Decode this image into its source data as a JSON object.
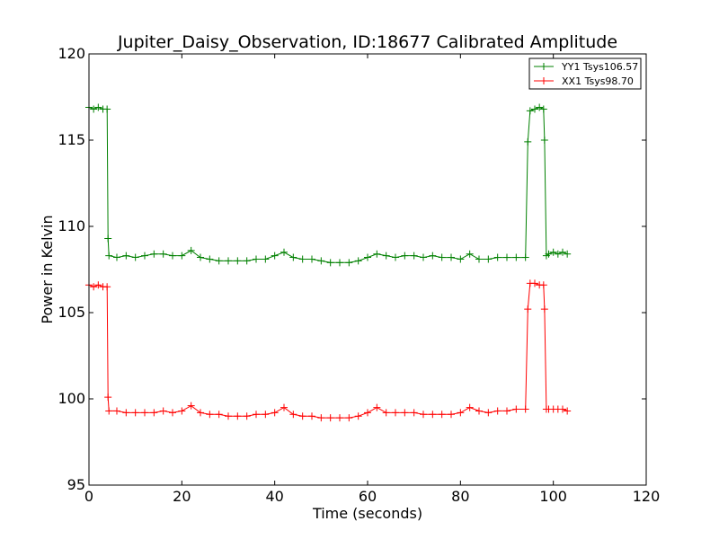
{
  "chart_data": {
    "type": "line",
    "title": "Jupiter_Daisy_Observation, ID:18677 Calibrated Amplitude",
    "xlabel": "Time (seconds)",
    "ylabel": "Power in Kelvin",
    "xlim": [
      0,
      120
    ],
    "ylim": [
      95,
      120
    ],
    "xticks": [
      0,
      20,
      40,
      60,
      80,
      100,
      120
    ],
    "yticks": [
      95,
      100,
      105,
      110,
      115,
      120
    ],
    "grid": false,
    "legend_position": "top-right",
    "marker": "+",
    "series": [
      {
        "name": "YY1 Tsys106.57",
        "color": "#008000",
        "points": [
          [
            0,
            116.9
          ],
          [
            1,
            116.8
          ],
          [
            2,
            116.9
          ],
          [
            3,
            116.8
          ],
          [
            3.9,
            116.8
          ],
          [
            4.1,
            109.3
          ],
          [
            4.3,
            108.3
          ],
          [
            6,
            108.2
          ],
          [
            8,
            108.3
          ],
          [
            10,
            108.2
          ],
          [
            12,
            108.3
          ],
          [
            14,
            108.4
          ],
          [
            16,
            108.4
          ],
          [
            18,
            108.3
          ],
          [
            20,
            108.3
          ],
          [
            22,
            108.6
          ],
          [
            24,
            108.2
          ],
          [
            26,
            108.1
          ],
          [
            28,
            108.0
          ],
          [
            30,
            108.0
          ],
          [
            32,
            108.0
          ],
          [
            34,
            108.0
          ],
          [
            36,
            108.1
          ],
          [
            38,
            108.1
          ],
          [
            40,
            108.3
          ],
          [
            42,
            108.5
          ],
          [
            44,
            108.2
          ],
          [
            46,
            108.1
          ],
          [
            48,
            108.1
          ],
          [
            50,
            108.0
          ],
          [
            52,
            107.9
          ],
          [
            54,
            107.9
          ],
          [
            56,
            107.9
          ],
          [
            58,
            108.0
          ],
          [
            60,
            108.2
          ],
          [
            62,
            108.4
          ],
          [
            64,
            108.3
          ],
          [
            66,
            108.2
          ],
          [
            68,
            108.3
          ],
          [
            70,
            108.3
          ],
          [
            72,
            108.2
          ],
          [
            74,
            108.3
          ],
          [
            76,
            108.2
          ],
          [
            78,
            108.2
          ],
          [
            80,
            108.1
          ],
          [
            82,
            108.4
          ],
          [
            84,
            108.1
          ],
          [
            86,
            108.1
          ],
          [
            88,
            108.2
          ],
          [
            90,
            108.2
          ],
          [
            92,
            108.2
          ],
          [
            94,
            108.2
          ],
          [
            94.5,
            114.9
          ],
          [
            95,
            116.7
          ],
          [
            96,
            116.8
          ],
          [
            97,
            116.9
          ],
          [
            97.9,
            116.8
          ],
          [
            98.1,
            115.0
          ],
          [
            98.5,
            108.3
          ],
          [
            99,
            108.4
          ],
          [
            100,
            108.5
          ],
          [
            101,
            108.4
          ],
          [
            102,
            108.5
          ],
          [
            103,
            108.4
          ]
        ]
      },
      {
        "name": "XX1 Tsys98.70",
        "color": "#ff0000",
        "points": [
          [
            0,
            106.6
          ],
          [
            1,
            106.5
          ],
          [
            2,
            106.6
          ],
          [
            3,
            106.5
          ],
          [
            3.9,
            106.5
          ],
          [
            4.1,
            100.1
          ],
          [
            4.3,
            99.3
          ],
          [
            6,
            99.3
          ],
          [
            8,
            99.2
          ],
          [
            10,
            99.2
          ],
          [
            12,
            99.2
          ],
          [
            14,
            99.2
          ],
          [
            16,
            99.3
          ],
          [
            18,
            99.2
          ],
          [
            20,
            99.3
          ],
          [
            22,
            99.6
          ],
          [
            24,
            99.2
          ],
          [
            26,
            99.1
          ],
          [
            28,
            99.1
          ],
          [
            30,
            99.0
          ],
          [
            32,
            99.0
          ],
          [
            34,
            99.0
          ],
          [
            36,
            99.1
          ],
          [
            38,
            99.1
          ],
          [
            40,
            99.2
          ],
          [
            42,
            99.5
          ],
          [
            44,
            99.1
          ],
          [
            46,
            99.0
          ],
          [
            48,
            99.0
          ],
          [
            50,
            98.9
          ],
          [
            52,
            98.9
          ],
          [
            54,
            98.9
          ],
          [
            56,
            98.9
          ],
          [
            58,
            99.0
          ],
          [
            60,
            99.2
          ],
          [
            62,
            99.5
          ],
          [
            64,
            99.2
          ],
          [
            66,
            99.2
          ],
          [
            68,
            99.2
          ],
          [
            70,
            99.2
          ],
          [
            72,
            99.1
          ],
          [
            74,
            99.1
          ],
          [
            76,
            99.1
          ],
          [
            78,
            99.1
          ],
          [
            80,
            99.2
          ],
          [
            82,
            99.5
          ],
          [
            84,
            99.3
          ],
          [
            86,
            99.2
          ],
          [
            88,
            99.3
          ],
          [
            90,
            99.3
          ],
          [
            92,
            99.4
          ],
          [
            94,
            99.4
          ],
          [
            94.5,
            105.2
          ],
          [
            95,
            106.7
          ],
          [
            96,
            106.7
          ],
          [
            97,
            106.6
          ],
          [
            97.9,
            106.6
          ],
          [
            98.1,
            105.2
          ],
          [
            98.5,
            99.4
          ],
          [
            99,
            99.4
          ],
          [
            100,
            99.4
          ],
          [
            101,
            99.4
          ],
          [
            102,
            99.4
          ],
          [
            103,
            99.3
          ]
        ]
      }
    ]
  }
}
